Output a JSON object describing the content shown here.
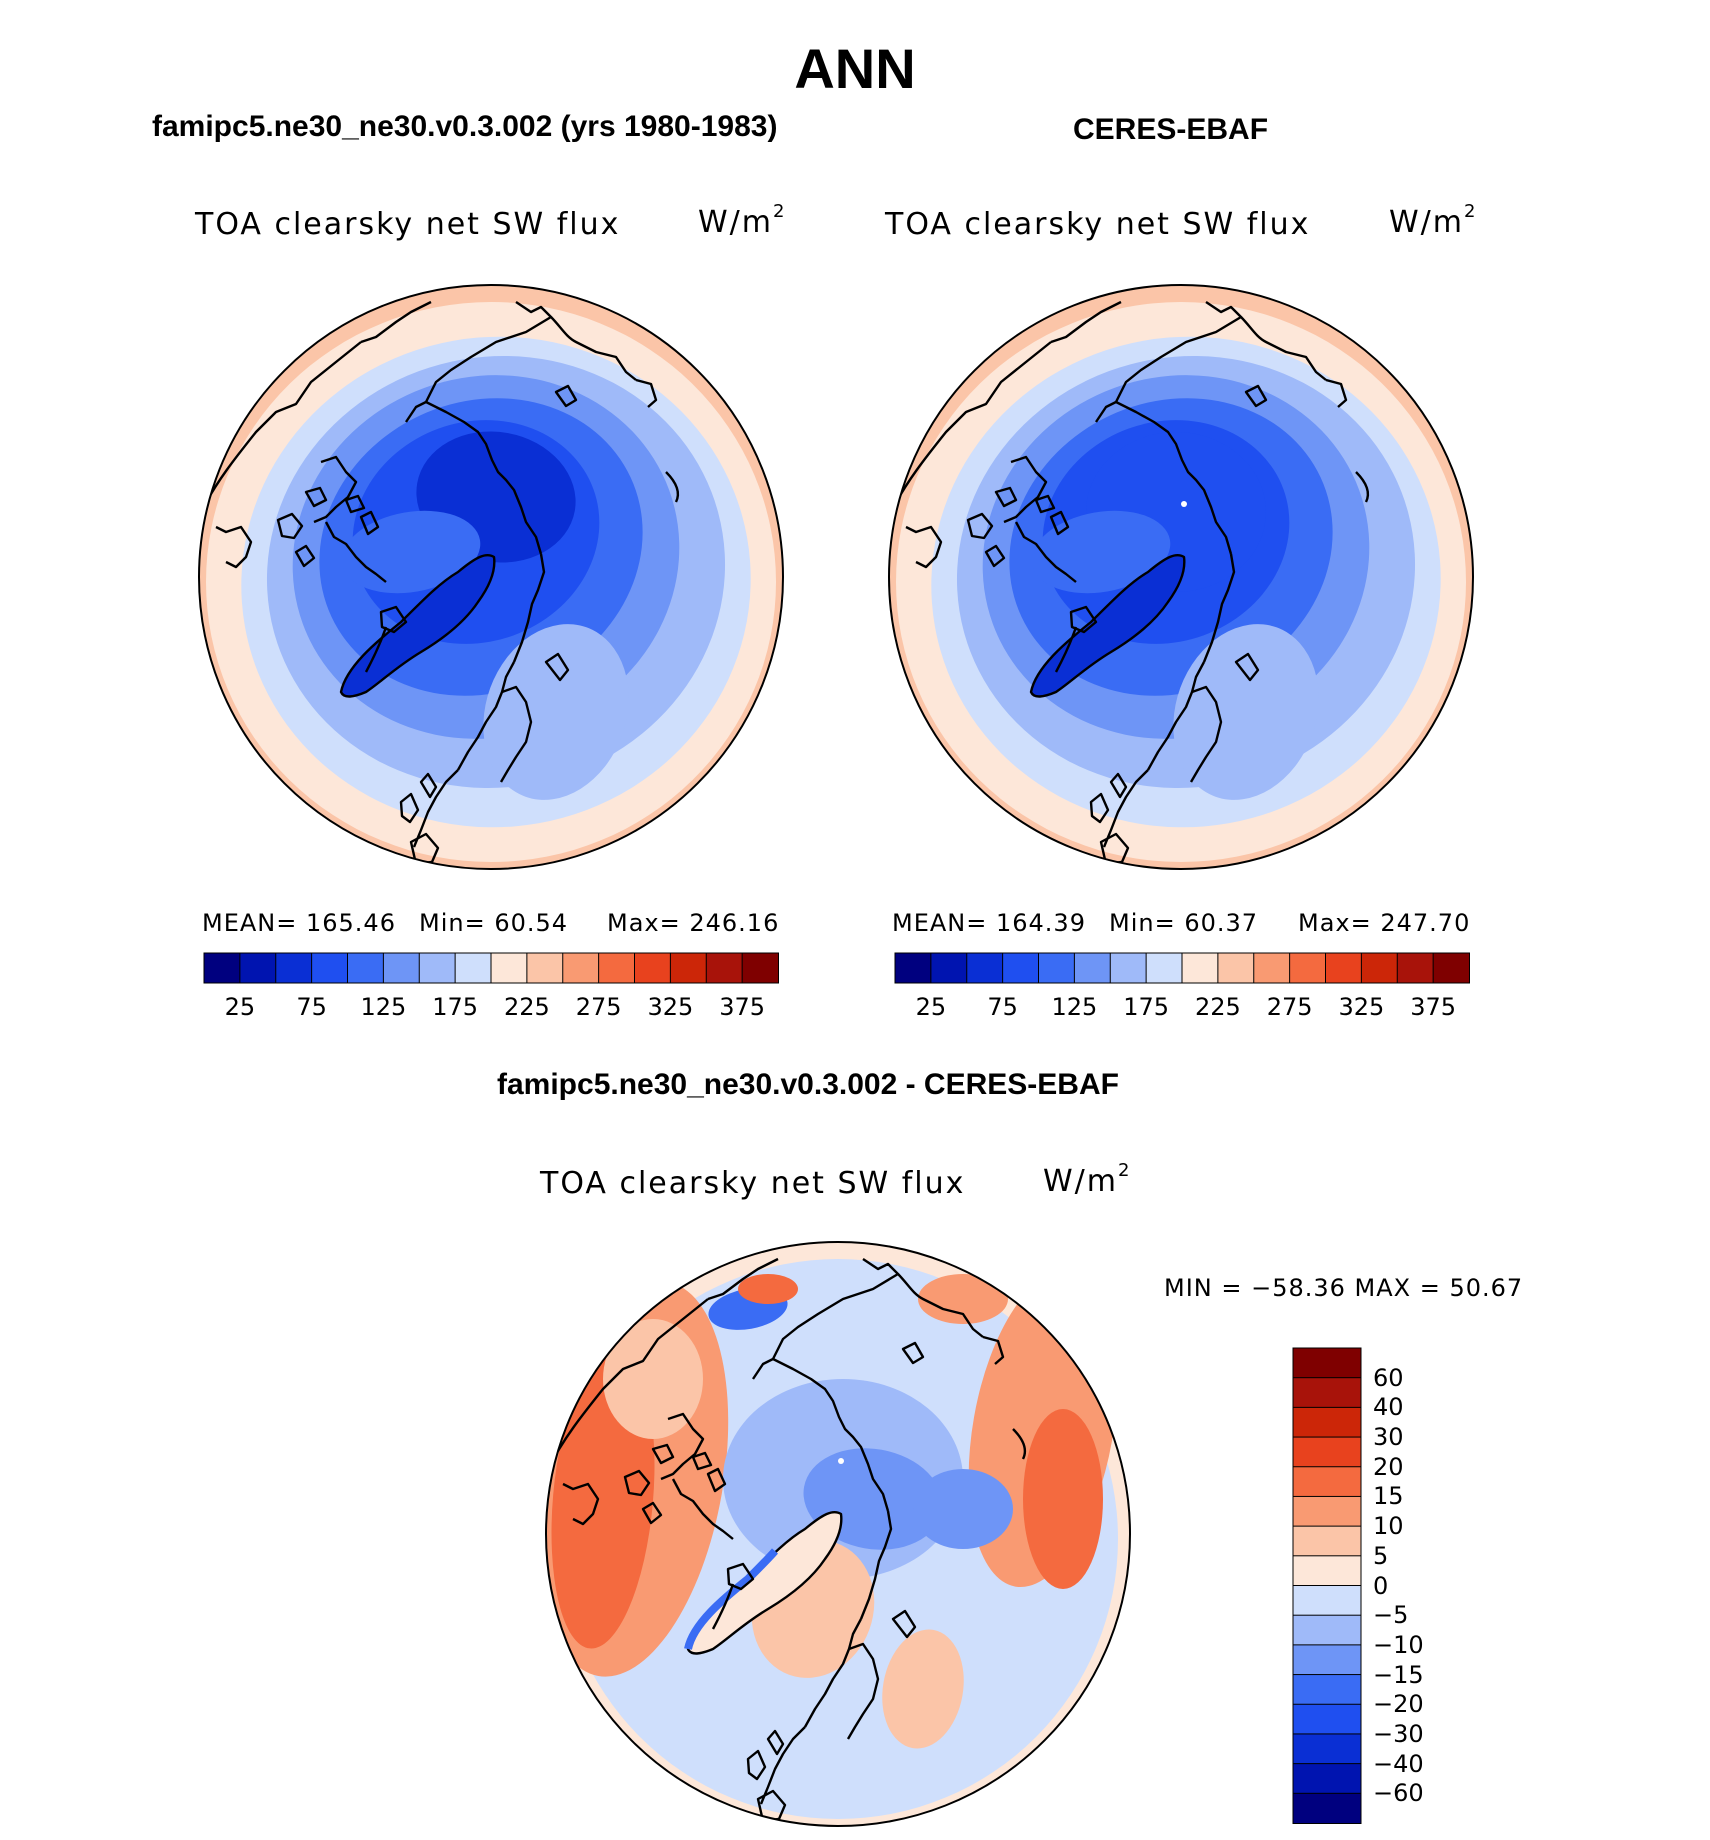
{
  "figure": {
    "season": "ANN",
    "model_title": "famipc5.ne30_ne30.v0.3.002 (yrs 1980-1983)",
    "obs_title": "CERES-EBAF",
    "diff_title": "famipc5.ne30_ne30.v0.3.002 - CERES-EBAF"
  },
  "panels": {
    "model": {
      "label": "TOA clearsky net SW flux",
      "units": "W/m",
      "units_sup": "2",
      "mean": "MEAN= 165.46",
      "min": "Min=   60.54",
      "max": "Max= 246.16"
    },
    "obs": {
      "label": "TOA clearsky net SW flux",
      "units": "W/m",
      "units_sup": "2",
      "mean": "MEAN= 164.39",
      "min": "Min=   60.37",
      "max": "Max= 247.70"
    },
    "diff": {
      "label": "TOA clearsky net SW flux",
      "units": "W/m",
      "units_sup": "2",
      "minmax": "MIN = −58.36 MAX =   50.67"
    }
  },
  "chart_data": [
    {
      "type": "heatmap",
      "title": "famipc5.ne30_ne30.v0.3.002 (yrs 1980-1983)",
      "variable": "TOA clearsky net SW flux",
      "units": "W/m2",
      "projection": "north polar stereographic",
      "mean": 165.46,
      "min": 60.54,
      "max": 246.16,
      "colorbar_levels": [
        25,
        50,
        75,
        100,
        125,
        150,
        175,
        200,
        225,
        250,
        275,
        300,
        325,
        350,
        375
      ],
      "colorbar_tick_labels": [
        "25",
        "75",
        "125",
        "175",
        "225",
        "275",
        "325",
        "375"
      ],
      "colors": [
        "#00007f",
        "#0014b0",
        "#0a2fd4",
        "#1f4ff0",
        "#3a6cf4",
        "#6e95f6",
        "#9fbaf9",
        "#cfdffc",
        "#fde7d9",
        "#fbc5a8",
        "#f99a72",
        "#f46a3f",
        "#e8421e",
        "#cc2608",
        "#a8130a",
        "#7f0000"
      ]
    },
    {
      "type": "heatmap",
      "title": "CERES-EBAF",
      "variable": "TOA clearsky net SW flux",
      "units": "W/m2",
      "projection": "north polar stereographic",
      "mean": 164.39,
      "min": 60.37,
      "max": 247.7,
      "colorbar_levels": [
        25,
        50,
        75,
        100,
        125,
        150,
        175,
        200,
        225,
        250,
        275,
        300,
        325,
        350,
        375
      ],
      "colorbar_tick_labels": [
        "25",
        "75",
        "125",
        "175",
        "225",
        "275",
        "325",
        "375"
      ],
      "colors": [
        "#00007f",
        "#0014b0",
        "#0a2fd4",
        "#1f4ff0",
        "#3a6cf4",
        "#6e95f6",
        "#9fbaf9",
        "#cfdffc",
        "#fde7d9",
        "#fbc5a8",
        "#f99a72",
        "#f46a3f",
        "#e8421e",
        "#cc2608",
        "#a8130a",
        "#7f0000"
      ]
    },
    {
      "type": "heatmap",
      "title": "famipc5.ne30_ne30.v0.3.002 - CERES-EBAF",
      "variable": "TOA clearsky net SW flux",
      "units": "W/m2",
      "projection": "north polar stereographic",
      "min": -58.36,
      "max": 50.67,
      "colorbar_levels": [
        60,
        40,
        30,
        20,
        15,
        10,
        5,
        0,
        -5,
        -10,
        -15,
        -20,
        -30,
        -40,
        -60
      ],
      "colorbar_tick_labels": [
        "60",
        "40",
        "30",
        "20",
        "15",
        "10",
        "5",
        "0",
        "−5",
        "−10",
        "−15",
        "−20",
        "−30",
        "−40",
        "−60"
      ],
      "colors": [
        "#7f0000",
        "#a8130a",
        "#cc2608",
        "#e8421e",
        "#f46a3f",
        "#f99a72",
        "#fbc5a8",
        "#fde7d9",
        "#cfdffc",
        "#9fbaf9",
        "#6e95f6",
        "#3a6cf4",
        "#1f4ff0",
        "#0a2fd4",
        "#0014b0",
        "#00007f"
      ]
    }
  ]
}
